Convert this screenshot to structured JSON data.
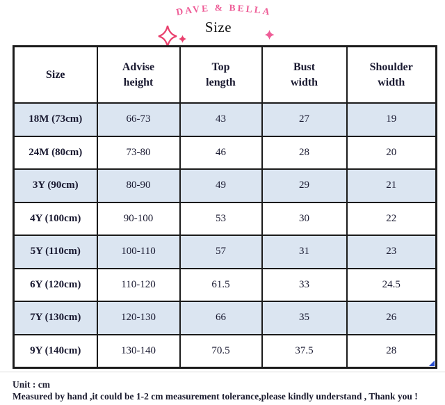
{
  "brand": {
    "name": "DAVE & BELLA",
    "subtitle": "Size"
  },
  "icons": {
    "header_left_large": "sparkle-icon",
    "header_left_small": "sparkle-icon",
    "header_right": "sparkle-icon"
  },
  "colors": {
    "brand_pink": "#ee5d97",
    "sparkle_pink": "#e9406d",
    "row_alt_blue": "#dbe5f1",
    "grid_border": "#1b1b1b",
    "table_text": "#191930",
    "marker_blue": "#2a4fd0"
  },
  "table": {
    "header": [
      "Size",
      "Advise\nheight",
      "Top\nlength",
      "Bust\nwidth",
      "Shoulder\nwidth"
    ],
    "rows": [
      [
        "18M (73cm)",
        "66-73",
        "43",
        "27",
        "19"
      ],
      [
        "24M (80cm)",
        "73-80",
        "46",
        "28",
        "20"
      ],
      [
        "3Y (90cm)",
        "80-90",
        "49",
        "29",
        "21"
      ],
      [
        "4Y (100cm)",
        "90-100",
        "53",
        "30",
        "22"
      ],
      [
        "5Y (110cm)",
        "100-110",
        "57",
        "31",
        "23"
      ],
      [
        "6Y (120cm)",
        "110-120",
        "61.5",
        "33",
        "24.5"
      ],
      [
        "7Y (130cm)",
        "120-130",
        "66",
        "35",
        "26"
      ],
      [
        "9Y (140cm)",
        "130-140",
        "70.5",
        "37.5",
        "28"
      ]
    ]
  },
  "notes": {
    "unit": "Unit : cm",
    "tolerance": "Measured by hand ,it could be 1-2 cm measurement tolerance,please kindly understand , Thank you !"
  },
  "chart_data": {
    "type": "table",
    "title": "DAVE & BELLA Size",
    "unit": "cm",
    "columns": [
      "Size",
      "Advise height",
      "Top length",
      "Bust width",
      "Shoulder width"
    ],
    "rows": [
      [
        "18M (73cm)",
        "66-73",
        43,
        27,
        19
      ],
      [
        "24M (80cm)",
        "73-80",
        46,
        28,
        20
      ],
      [
        "3Y (90cm)",
        "80-90",
        49,
        29,
        21
      ],
      [
        "4Y (100cm)",
        "90-100",
        53,
        30,
        22
      ],
      [
        "5Y (110cm)",
        "100-110",
        57,
        31,
        23
      ],
      [
        "6Y (120cm)",
        "110-120",
        61.5,
        33,
        24.5
      ],
      [
        "7Y (130cm)",
        "120-130",
        66,
        35,
        26
      ],
      [
        "9Y (140cm)",
        "130-140",
        70.5,
        37.5,
        28
      ]
    ]
  }
}
